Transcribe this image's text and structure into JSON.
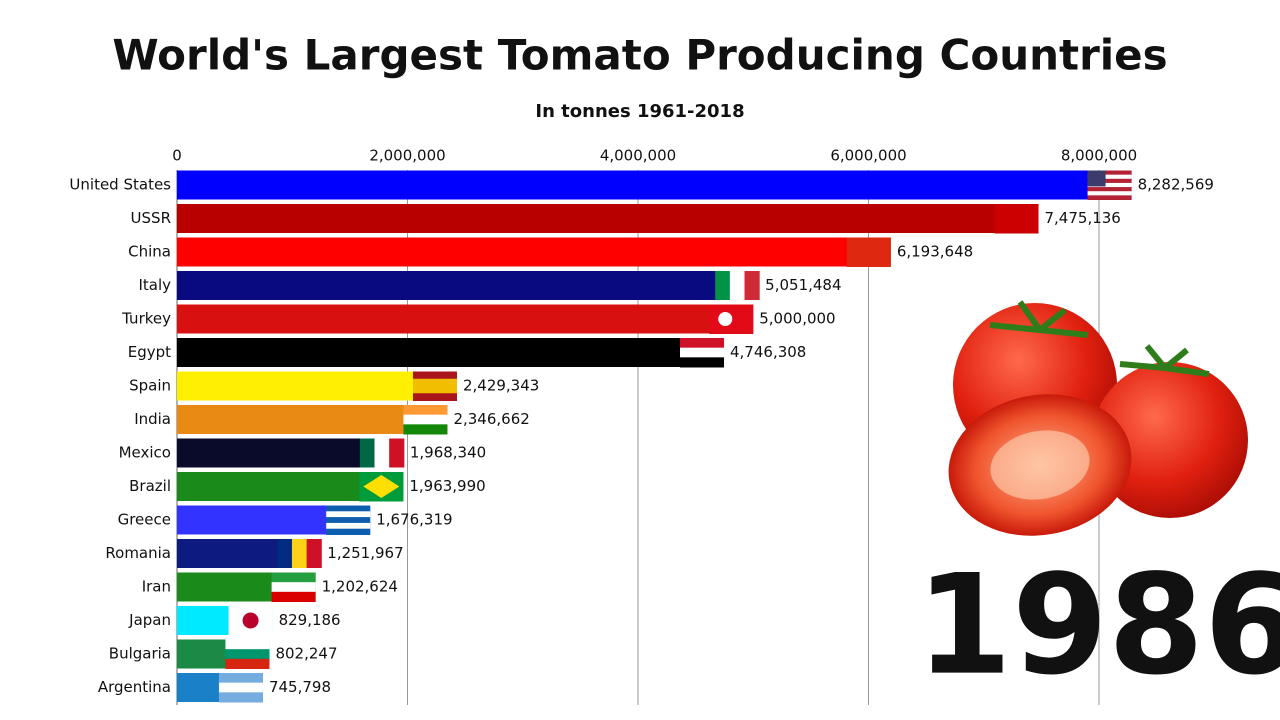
{
  "chart_data": {
    "type": "bar",
    "orientation": "horizontal",
    "title": "World's Largest Tomato Producing Countries",
    "subtitle": "In tonnes 1961-2018",
    "year_label": "1986",
    "categories": [
      "United States",
      "USSR",
      "China",
      "Italy",
      "Turkey",
      "Egypt",
      "Spain",
      "India",
      "Mexico",
      "Brazil",
      "Greece",
      "Romania",
      "Iran",
      "Japan",
      "Bulgaria",
      "Argentina"
    ],
    "values": [
      8282569,
      7475136,
      6193648,
      5051484,
      5000000,
      4746308,
      2429343,
      2346662,
      1968340,
      1963990,
      1676319,
      1251967,
      1202624,
      829186,
      802247,
      745798
    ],
    "value_labels": [
      "8,282,569",
      "7,475,136",
      "6,193,648",
      "5,051,484",
      "5,000,000",
      "4,746,308",
      "2,429,343",
      "2,346,662",
      "1,968,340",
      "1,963,990",
      "1,676,319",
      "1,251,967",
      "1,202,624",
      "829,186",
      "802,247",
      "745,798"
    ],
    "colors": [
      "#0000ff",
      "#b80000",
      "#ff0000",
      "#0a0a80",
      "#d81010",
      "#000000",
      "#ffef00",
      "#e98a14",
      "#0a0a2a",
      "#1a8a1a",
      "#3333ff",
      "#0d1a80",
      "#1a8a1a",
      "#00eaff",
      "#1a8a46",
      "#1a80c8"
    ],
    "xlim": [
      0,
      9000000
    ],
    "xticks": [
      0,
      {
        "value": 2000000,
        "label": "2,000,000"
      },
      {
        "value": 4000000,
        "label": "4,000,000"
      },
      {
        "value": 6000000,
        "label": "6,000,000"
      },
      {
        "value": 8000000,
        "label": "8,000,000"
      }
    ],
    "grid": true
  }
}
